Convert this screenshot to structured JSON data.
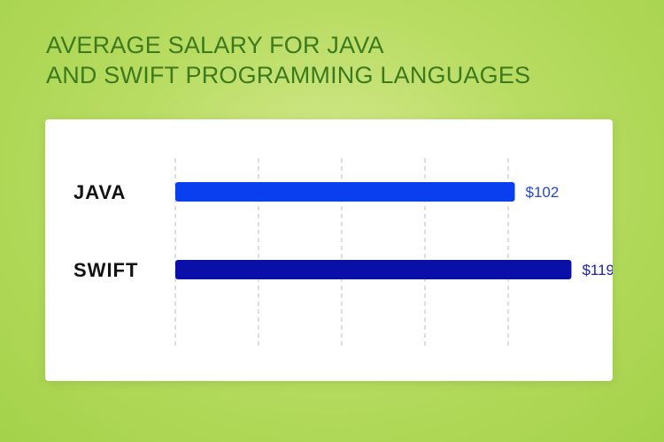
{
  "title_lines": [
    "AVERAGE SALARY FOR JAVA",
    "AND SWIFT PROGRAMMING LANGUAGES"
  ],
  "colors": {
    "title": "#3d7a1e",
    "grid": "#c8c8c8",
    "bars": [
      "#0a3ff0",
      "#0a0fa8"
    ],
    "value_labels": [
      "#2345d6",
      "#1a1fb0"
    ]
  },
  "chart_data": {
    "type": "bar",
    "orientation": "horizontal",
    "title": "AVERAGE SALARY FOR JAVA AND SWIFT PROGRAMMING LANGUAGES",
    "categories": [
      "JAVA",
      "SWIFT"
    ],
    "values": [
      102,
      119
    ],
    "value_labels": [
      "$102",
      "$119"
    ],
    "xlim": [
      0,
      125
    ],
    "gridlines_at": [
      0,
      25,
      50,
      75,
      100
    ],
    "grid": "vertical dashed",
    "legend": "none"
  }
}
